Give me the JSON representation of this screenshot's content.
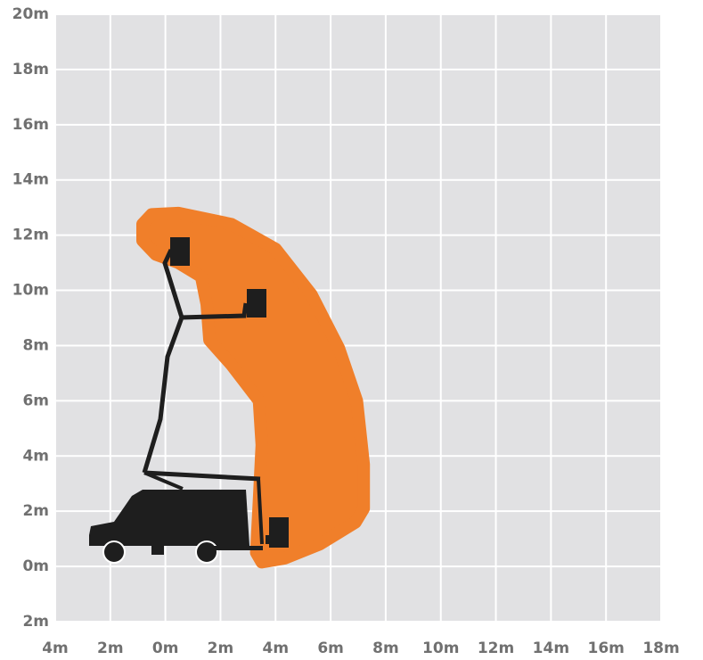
{
  "chart_data": {
    "type": "range",
    "xlim": [
      -4,
      18
    ],
    "ylim": [
      -2,
      20
    ],
    "xticks": [
      {
        "value": -4,
        "label": "4m"
      },
      {
        "value": -2,
        "label": "2m"
      },
      {
        "value": 0,
        "label": "0m"
      },
      {
        "value": 2,
        "label": "2m"
      },
      {
        "value": 4,
        "label": "4m"
      },
      {
        "value": 6,
        "label": "6m"
      },
      {
        "value": 8,
        "label": "8m"
      },
      {
        "value": 10,
        "label": "10m"
      },
      {
        "value": 12,
        "label": "12m"
      },
      {
        "value": 14,
        "label": "14m"
      },
      {
        "value": 16,
        "label": "16m"
      },
      {
        "value": 18,
        "label": "18m"
      }
    ],
    "yticks": [
      {
        "value": -2,
        "label": "2m"
      },
      {
        "value": 0,
        "label": "0m"
      },
      {
        "value": 2,
        "label": "2m"
      },
      {
        "value": 4,
        "label": "4m"
      },
      {
        "value": 6,
        "label": "6m"
      },
      {
        "value": 8,
        "label": "8m"
      },
      {
        "value": 10,
        "label": "10m"
      },
      {
        "value": 12,
        "label": "12m"
      },
      {
        "value": 14,
        "label": "14m"
      },
      {
        "value": 16,
        "label": "16m"
      },
      {
        "value": 18,
        "label": "18m"
      },
      {
        "value": 20,
        "label": "20m"
      }
    ],
    "grid": true,
    "color": "#f07f2a",
    "x": [
      -0.83,
      -0.5,
      0.47,
      2.4,
      4.0,
      5.3,
      6.3,
      6.95,
      7.2,
      7.2,
      6.9,
      5.6,
      4.35,
      3.5,
      3.3,
      3.4,
      3.5,
      3.4,
      2.4,
      1.6,
      1.5,
      1.3,
      0.47,
      -0.35,
      -0.83
    ],
    "values": [
      12.4,
      12.75,
      12.8,
      12.4,
      11.5,
      9.85,
      7.9,
      6.0,
      3.7,
      2.1,
      1.6,
      0.8,
      0.3,
      0.15,
      0.5,
      2.4,
      4.4,
      6.0,
      7.3,
      8.2,
      9.5,
      10.5,
      11.0,
      11.3,
      11.8
    ]
  }
}
